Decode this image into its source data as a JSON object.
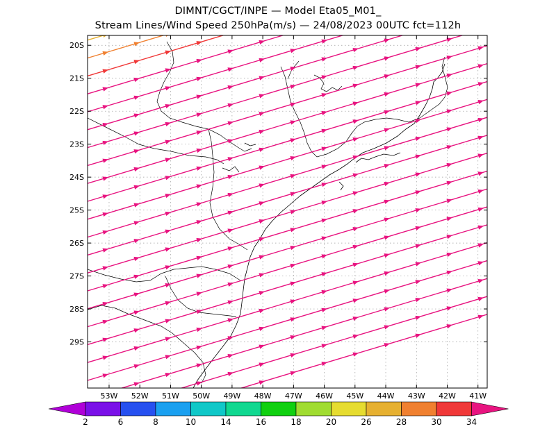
{
  "title_line1": "DIMNT/CGCT/INPE —  Model Eta05_M01_",
  "title_line2": "Stream Lines/Wind Speed 250hPa(m/s) —  24/08/2023 00UTC fct=112h",
  "map": {
    "lon_range": [
      -53.7,
      -40.7
    ],
    "lat_range": [
      -30.4,
      -19.7
    ],
    "lon_ticks": [
      -53,
      -52,
      -51,
      -50,
      -49,
      -48,
      -47,
      -46,
      -45,
      -44,
      -43,
      -42,
      -41
    ],
    "lat_ticks": [
      -20,
      -21,
      -22,
      -23,
      -24,
      -25,
      -26,
      -27,
      -28,
      -29
    ],
    "lon_tick_labels": [
      "53W",
      "52W",
      "51W",
      "50W",
      "49W",
      "48W",
      "47W",
      "46W",
      "45W",
      "44W",
      "43W",
      "42W",
      "41W"
    ],
    "lat_tick_labels": [
      "20S",
      "21S",
      "22S",
      "23S",
      "24S",
      "25S",
      "26S",
      "27S",
      "28S",
      "29S"
    ],
    "grid": "dotted",
    "streamline_direction": "west-to-east, slightly northward"
  },
  "colorbar": {
    "labels": [
      "2",
      "6",
      "8",
      "10",
      "14",
      "16",
      "18",
      "20",
      "26",
      "28",
      "30",
      "34"
    ],
    "colors": [
      "#b000d8",
      "#7a10e8",
      "#2650f0",
      "#1aa0f0",
      "#10c8c8",
      "#10d890",
      "#10d010",
      "#a0dc30",
      "#e6dc30",
      "#e6b030",
      "#f08030",
      "#f03838",
      "#e81480"
    ]
  }
}
